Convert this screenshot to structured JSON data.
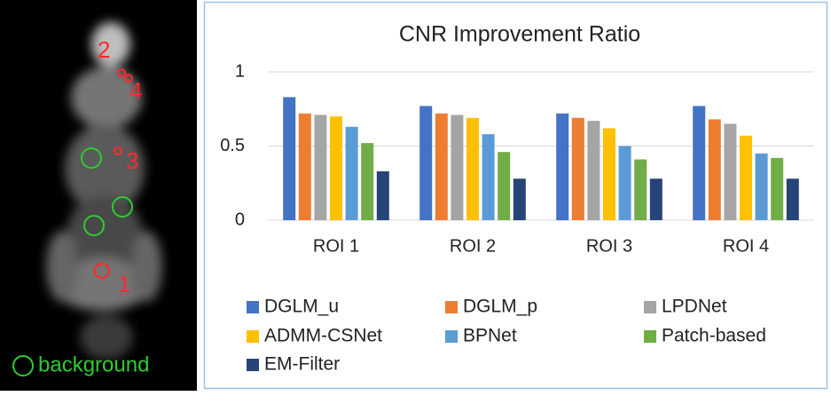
{
  "image": {
    "roi_labels": [
      "1",
      "2",
      "3",
      "4"
    ],
    "legend": "background"
  },
  "chart_data": {
    "type": "bar",
    "title": "CNR Improvement Ratio",
    "categories": [
      "ROI 1",
      "ROI 2",
      "ROI 3",
      "ROI 4"
    ],
    "series": [
      {
        "name": "DGLM_u",
        "color": "#4472c4",
        "values": [
          0.83,
          0.77,
          0.72,
          0.77
        ]
      },
      {
        "name": "DGLM_p",
        "color": "#ed7d31",
        "values": [
          0.72,
          0.72,
          0.69,
          0.68
        ]
      },
      {
        "name": "LPDNet",
        "color": "#a5a5a5",
        "values": [
          0.71,
          0.71,
          0.67,
          0.65
        ]
      },
      {
        "name": "ADMM-CSNet",
        "color": "#ffc000",
        "values": [
          0.7,
          0.69,
          0.62,
          0.57
        ]
      },
      {
        "name": "BPNet",
        "color": "#5b9bd5",
        "values": [
          0.63,
          0.58,
          0.5,
          0.45
        ]
      },
      {
        "name": "Patch-based",
        "color": "#70ad47",
        "values": [
          0.52,
          0.46,
          0.41,
          0.42
        ]
      },
      {
        "name": "EM-Filter",
        "color": "#264478",
        "values": [
          0.33,
          0.28,
          0.28,
          0.28
        ]
      }
    ],
    "ylim": [
      0,
      1
    ],
    "yticks": [
      0,
      0.5,
      1
    ],
    "grid": true
  }
}
